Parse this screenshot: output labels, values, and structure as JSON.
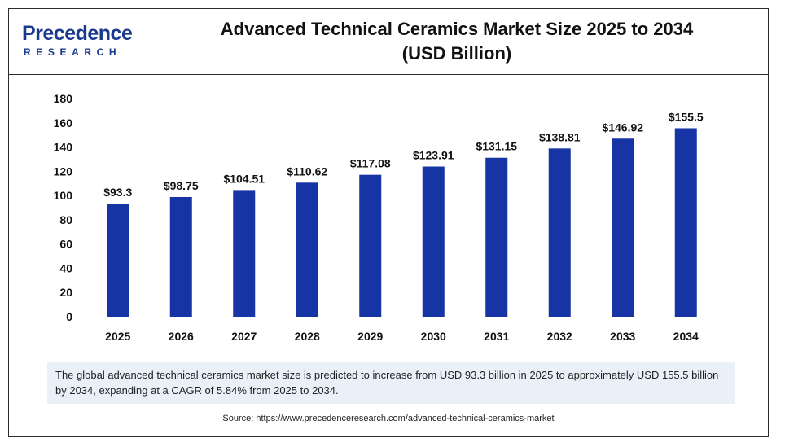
{
  "logo": {
    "top_text": "Precedence",
    "bottom_text": "RESEARCH",
    "color": "#1a3a8f"
  },
  "title_line1": "Advanced Technical Ceramics Market Size 2025 to 2034",
  "title_line2": "(USD Billion)",
  "note": "The global advanced technical ceramics market size is predicted to increase from USD 93.3 billion in 2025 to approximately USD 155.5 billion by 2034, expanding at a CAGR of 5.84% from 2025 to 2034.",
  "source": "Source: https://www.precedenceresearch.com/advanced-technical-ceramics-market",
  "chart_data": {
    "type": "bar",
    "title": "Advanced Technical Ceramics Market Size 2025 to 2034 (USD Billion)",
    "categories": [
      "2025",
      "2026",
      "2027",
      "2028",
      "2029",
      "2030",
      "2031",
      "2032",
      "2033",
      "2034"
    ],
    "values": [
      93.3,
      98.75,
      104.51,
      110.62,
      117.08,
      123.91,
      131.15,
      138.81,
      146.92,
      155.5
    ],
    "data_labels": [
      "$93.3",
      "$98.75",
      "$104.51",
      "$110.62",
      "$117.08",
      "$123.91",
      "$131.15",
      "$138.81",
      "$146.92",
      "$155.5"
    ],
    "ylim": [
      0,
      180
    ],
    "yticks": [
      0,
      20,
      40,
      60,
      80,
      100,
      120,
      140,
      160,
      180
    ],
    "xlabel": "",
    "ylabel": "",
    "grid": false,
    "bar_color": "#1634a3"
  }
}
